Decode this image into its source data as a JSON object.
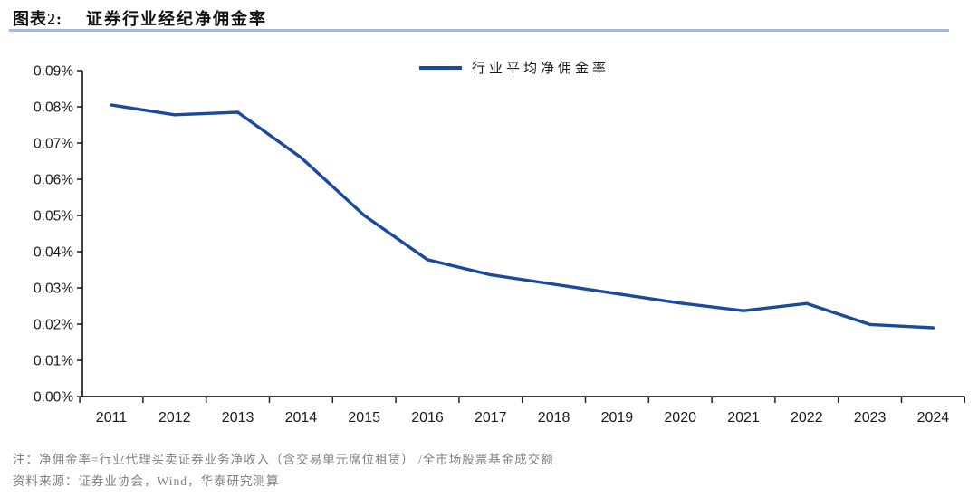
{
  "header": {
    "figure_label": "图表2:",
    "title": "证券行业经纪净佣金率"
  },
  "chart_data": {
    "type": "line",
    "title": "证券行业经纪净佣金率",
    "legend": "行业平均净佣金率",
    "unit": "percent",
    "x": [
      2011,
      2012,
      2013,
      2014,
      2015,
      2016,
      2017,
      2018,
      2019,
      2020,
      2021,
      2022,
      2023,
      2024
    ],
    "series": [
      {
        "name": "行业平均净佣金率",
        "values": [
          0.0805,
          0.0778,
          0.0785,
          0.066,
          0.05,
          0.0378,
          0.0336,
          0.031,
          0.0284,
          0.0258,
          0.0237,
          0.0257,
          0.0199,
          0.019
        ]
      }
    ],
    "ylim": [
      0,
      0.09
    ],
    "yticks": [
      0,
      0.01,
      0.02,
      0.03,
      0.04,
      0.05,
      0.06,
      0.07,
      0.08,
      0.09
    ],
    "ytick_format": "0.00%",
    "grid": false,
    "legend_position": "top-center",
    "colors": {
      "line": "#1A4A9C",
      "axis": "#1f1f1f",
      "title_rule": "#A9BBD3",
      "note_text": "#808080"
    }
  },
  "footer": {
    "note": "注：净佣金率=行业代理买卖证券业务净收入（含交易单元席位租赁） /全市场股票基金成交额",
    "source": "资料来源：证券业协会，Wind，华泰研究测算"
  }
}
